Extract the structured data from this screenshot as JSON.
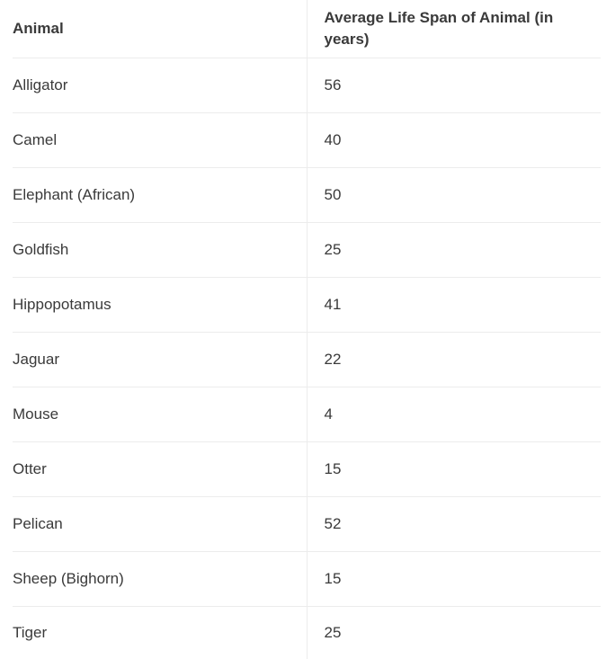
{
  "table": {
    "headers": [
      "Animal",
      "Average Life Span of Animal (in years)"
    ],
    "rows": [
      [
        "Alligator",
        "56"
      ],
      [
        "Camel",
        "40"
      ],
      [
        "Elephant (African)",
        "50"
      ],
      [
        "Goldfish",
        "25"
      ],
      [
        "Hippopotamus",
        "41"
      ],
      [
        "Jaguar",
        "22"
      ],
      [
        "Mouse",
        "4"
      ],
      [
        "Otter",
        "15"
      ],
      [
        "Pelican",
        "52"
      ],
      [
        "Sheep (Bighorn)",
        "15"
      ],
      [
        "Tiger",
        "25"
      ]
    ]
  },
  "colors": {
    "text": "#3a3a3a",
    "border": "#ececec",
    "background": "#ffffff"
  }
}
